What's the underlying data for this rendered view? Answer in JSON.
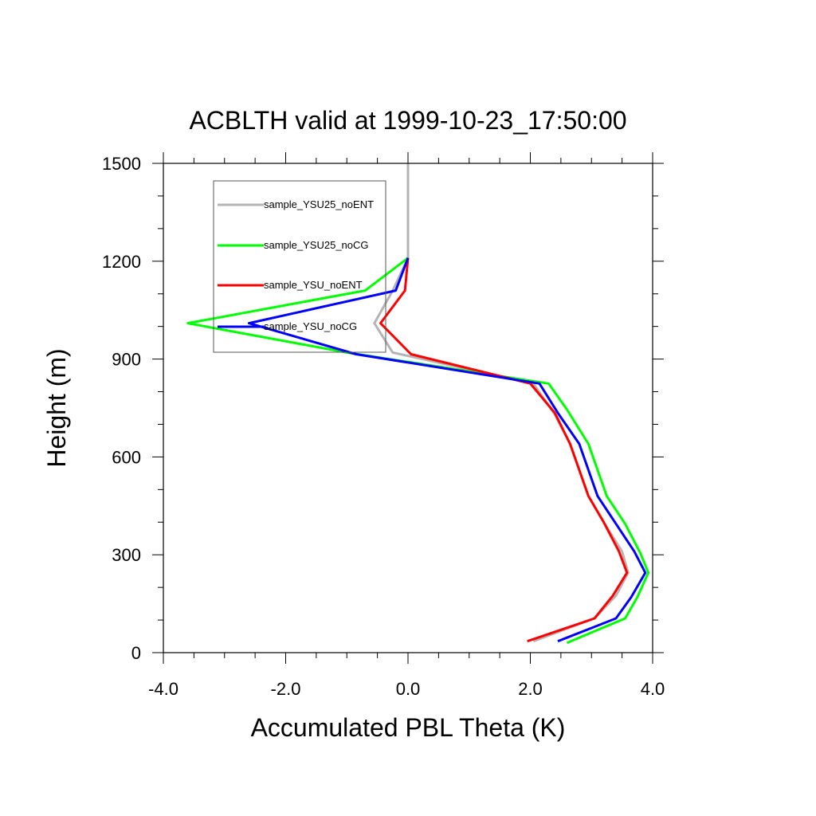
{
  "chart_data": {
    "type": "line",
    "title": "ACBLTH valid at 1999-10-23_17:50:00",
    "xlabel": "Accumulated PBL Theta (K)",
    "ylabel": "Height (m)",
    "xlim": [
      -4.0,
      4.0
    ],
    "ylim": [
      0,
      1500
    ],
    "xticks": [
      "-4.0",
      "-2.0",
      "0.0",
      "2.0",
      "4.0"
    ],
    "yticks": [
      "0",
      "300",
      "600",
      "900",
      "1200",
      "1500"
    ],
    "grid": false,
    "legend_position": "top-left",
    "series": [
      {
        "name": "sample_YSU25_noENT",
        "color": "#b4b4b4",
        "points": [
          [
            2.05,
            35
          ],
          [
            3.05,
            105
          ],
          [
            3.4,
            175
          ],
          [
            3.6,
            245
          ],
          [
            3.5,
            310
          ],
          [
            3.2,
            400
          ],
          [
            2.95,
            480
          ],
          [
            2.65,
            640
          ],
          [
            2.4,
            730
          ],
          [
            2.05,
            825
          ],
          [
            -0.25,
            920
          ],
          [
            -0.55,
            1010
          ],
          [
            -0.25,
            1110
          ],
          [
            0.0,
            1210
          ],
          [
            0.0,
            1500
          ]
        ]
      },
      {
        "name": "sample_YSU25_noCG",
        "color": "#00ff00",
        "points": [
          [
            2.6,
            30
          ],
          [
            3.55,
            105
          ],
          [
            3.75,
            170
          ],
          [
            3.93,
            245
          ],
          [
            3.8,
            305
          ],
          [
            3.55,
            395
          ],
          [
            3.25,
            480
          ],
          [
            2.95,
            640
          ],
          [
            2.6,
            745
          ],
          [
            2.3,
            825
          ],
          [
            -1.0,
            920
          ],
          [
            -3.6,
            1010
          ],
          [
            -0.7,
            1110
          ],
          [
            0.0,
            1210
          ]
        ]
      },
      {
        "name": "sample_YSU_noENT",
        "color": "#ff0000",
        "points": [
          [
            1.95,
            35
          ],
          [
            3.05,
            105
          ],
          [
            3.35,
            175
          ],
          [
            3.58,
            245
          ],
          [
            3.45,
            310
          ],
          [
            3.2,
            400
          ],
          [
            2.95,
            480
          ],
          [
            2.65,
            640
          ],
          [
            2.4,
            735
          ],
          [
            2.0,
            825
          ],
          [
            0.05,
            915
          ],
          [
            -0.45,
            1010
          ],
          [
            -0.05,
            1110
          ],
          [
            0.0,
            1210
          ]
        ]
      },
      {
        "name": "sample_YSU_noCG",
        "color": "#0000ff",
        "points": [
          [
            2.45,
            35
          ],
          [
            3.4,
            105
          ],
          [
            3.65,
            170
          ],
          [
            3.88,
            245
          ],
          [
            3.7,
            310
          ],
          [
            3.4,
            395
          ],
          [
            3.1,
            480
          ],
          [
            2.8,
            640
          ],
          [
            2.45,
            735
          ],
          [
            2.15,
            825
          ],
          [
            -0.85,
            915
          ],
          [
            -2.6,
            1010
          ],
          [
            -0.2,
            1110
          ],
          [
            0.0,
            1210
          ]
        ]
      }
    ]
  }
}
